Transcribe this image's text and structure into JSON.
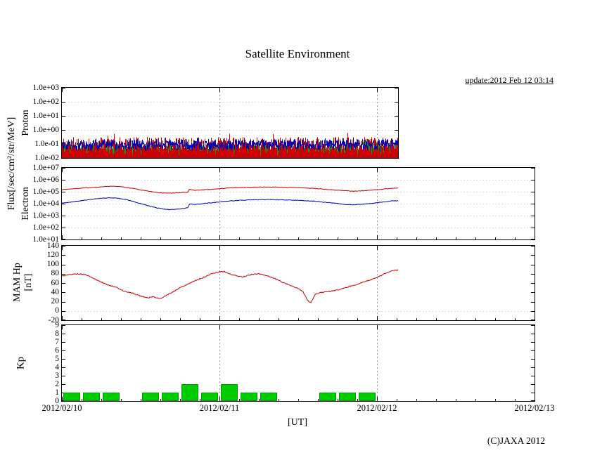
{
  "page": {
    "title": "Satellite Environment",
    "update_text": "update:2012 Feb 12 03:14",
    "x_axis_label": "[UT]",
    "copyright": "(C)JAXA 2012"
  },
  "axes": {
    "flux_label": "Flux[/sec/cm²/str/MeV]",
    "x_tick_labels": [
      "2012/02/10",
      "2012/02/11",
      "2012/02/12",
      "2012/02/13"
    ],
    "x_tick_days": [
      0,
      1,
      2,
      3
    ]
  },
  "colors": {
    "proton_ch1": "#cc0000",
    "proton_ch2": "#0000bb",
    "proton_ch3": "#00aa00",
    "electron_high": "#cc0000",
    "electron_low": "#0000bb",
    "hp_line": "#cc0000",
    "kp_bar": "#00cc00",
    "grid": "#999999",
    "frame": "#000000"
  },
  "chart_data": [
    {
      "id": "proton",
      "type": "line",
      "ylabel": "Proton",
      "yscale": "log",
      "ylim": [
        0.01,
        1000
      ],
      "ytick_values": [
        1000,
        100,
        10,
        1,
        0.1,
        0.01
      ],
      "ytick_labels": [
        "1.0e+03",
        "1.0e+02",
        "1.0e+01",
        "1.0e+00",
        "1.0e-01",
        "1.0e-02"
      ],
      "grid_y_values": [
        100,
        10,
        1,
        0.1
      ],
      "x_box_end_day": 2.135,
      "data_end_day": 2.135,
      "series": [
        {
          "name": "proton-flux-ch1",
          "style": "noise-fill",
          "color": "#cc0000",
          "top_log_mean": -0.95,
          "top_log_jitter": 0.45,
          "seed": 11
        },
        {
          "name": "proton-flux-ch3",
          "style": "noise-sparse",
          "color": "#00aa00",
          "center_log": -1.3,
          "band_log": 0.25,
          "density": 0.3,
          "seed": 33
        },
        {
          "name": "proton-flux-ch2",
          "style": "noise-band",
          "color": "#0000bb",
          "center_log": -1.05,
          "band_log": 0.22,
          "seed": 22
        }
      ]
    },
    {
      "id": "electron",
      "type": "line",
      "ylabel": "Electron",
      "yscale": "log",
      "ylim": [
        10,
        10000000
      ],
      "ytick_values": [
        10000000,
        1000000,
        100000,
        10000,
        1000,
        100,
        10
      ],
      "ytick_labels": [
        "1.0e+07",
        "1.0e+06",
        "1.0e+05",
        "1.0e+04",
        "1.0e+03",
        "1.0e+02",
        "1.0e+01"
      ],
      "grid_y_values": [
        1000000,
        100000,
        10000,
        1000,
        100
      ],
      "x_box_end_day": 3,
      "data_end_day": 2.135,
      "series": [
        {
          "name": "electron-flux-high",
          "style": "line",
          "color": "#cc0000",
          "jitter": 0.045,
          "seed": 7,
          "points": [
            [
              0,
              150000
            ],
            [
              0.05,
              170000
            ],
            [
              0.1,
              190000
            ],
            [
              0.15,
              210000
            ],
            [
              0.2,
              230000
            ],
            [
              0.25,
              260000
            ],
            [
              0.3,
              280000
            ],
            [
              0.35,
              280000
            ],
            [
              0.4,
              240000
            ],
            [
              0.45,
              190000
            ],
            [
              0.5,
              140000
            ],
            [
              0.55,
              110000
            ],
            [
              0.6,
              90000
            ],
            [
              0.64,
              80000
            ],
            [
              0.68,
              75000
            ],
            [
              0.72,
              80000
            ],
            [
              0.76,
              85000
            ],
            [
              0.8,
              90000
            ],
            [
              0.81,
              160000
            ],
            [
              0.84,
              130000
            ],
            [
              0.88,
              140000
            ],
            [
              0.92,
              150000
            ],
            [
              0.96,
              160000
            ],
            [
              1.0,
              180000
            ],
            [
              1.05,
              200000
            ],
            [
              1.1,
              220000
            ],
            [
              1.2,
              240000
            ],
            [
              1.3,
              250000
            ],
            [
              1.4,
              240000
            ],
            [
              1.5,
              220000
            ],
            [
              1.6,
              190000
            ],
            [
              1.7,
              150000
            ],
            [
              1.8,
              120000
            ],
            [
              1.85,
              110000
            ],
            [
              1.9,
              120000
            ],
            [
              1.95,
              130000
            ],
            [
              2.0,
              150000
            ],
            [
              2.05,
              170000
            ],
            [
              2.1,
              200000
            ],
            [
              2.135,
              210000
            ]
          ]
        },
        {
          "name": "electron-flux-low",
          "style": "line",
          "color": "#0000bb",
          "jitter": 0.05,
          "seed": 9,
          "points": [
            [
              0,
              11000
            ],
            [
              0.05,
              13000
            ],
            [
              0.1,
              16000
            ],
            [
              0.15,
              20000
            ],
            [
              0.2,
              24000
            ],
            [
              0.25,
              28000
            ],
            [
              0.3,
              30000
            ],
            [
              0.35,
              29000
            ],
            [
              0.4,
              23000
            ],
            [
              0.45,
              16000
            ],
            [
              0.5,
              10000
            ],
            [
              0.55,
              6500
            ],
            [
              0.6,
              4500
            ],
            [
              0.64,
              3600
            ],
            [
              0.68,
              3200
            ],
            [
              0.72,
              3400
            ],
            [
              0.76,
              3800
            ],
            [
              0.8,
              4500
            ],
            [
              0.81,
              10000
            ],
            [
              0.84,
              8500
            ],
            [
              0.88,
              9500
            ],
            [
              0.92,
              11000
            ],
            [
              0.96,
              12000
            ],
            [
              1.0,
              14000
            ],
            [
              1.05,
              16000
            ],
            [
              1.1,
              18000
            ],
            [
              1.2,
              21000
            ],
            [
              1.3,
              22000
            ],
            [
              1.4,
              21000
            ],
            [
              1.5,
              19000
            ],
            [
              1.6,
              16000
            ],
            [
              1.7,
              12000
            ],
            [
              1.8,
              8500
            ],
            [
              1.85,
              8000
            ],
            [
              1.9,
              9000
            ],
            [
              1.95,
              10000
            ],
            [
              2.0,
              12000
            ],
            [
              2.05,
              14000
            ],
            [
              2.1,
              17000
            ],
            [
              2.135,
              18000
            ]
          ]
        }
      ]
    },
    {
      "id": "hp",
      "type": "line",
      "ylabel": "MAM Hp",
      "ylabel2": "[nT]",
      "yscale": "linear",
      "ylim": [
        -20,
        140
      ],
      "ytick_values": [
        140,
        120,
        100,
        80,
        60,
        40,
        20,
        0,
        -20
      ],
      "ytick_labels": [
        "140",
        "120",
        "100",
        "80",
        "60",
        "40",
        "20",
        "0",
        "-20"
      ],
      "grid_y_values": [
        0
      ],
      "x_box_end_day": 3,
      "data_end_day": 2.135,
      "series": [
        {
          "name": "hp-line",
          "style": "line",
          "color": "#cc0000",
          "jitter": 2.0,
          "seed": 5,
          "points": [
            [
              0,
              75
            ],
            [
              0.05,
              78
            ],
            [
              0.1,
              80
            ],
            [
              0.15,
              78
            ],
            [
              0.2,
              70
            ],
            [
              0.25,
              62
            ],
            [
              0.3,
              55
            ],
            [
              0.35,
              50
            ],
            [
              0.4,
              42
            ],
            [
              0.45,
              38
            ],
            [
              0.5,
              32
            ],
            [
              0.55,
              28
            ],
            [
              0.58,
              31
            ],
            [
              0.62,
              26
            ],
            [
              0.66,
              33
            ],
            [
              0.7,
              40
            ],
            [
              0.75,
              50
            ],
            [
              0.8,
              58
            ],
            [
              0.85,
              66
            ],
            [
              0.9,
              72
            ],
            [
              0.95,
              80
            ],
            [
              1.0,
              84
            ],
            [
              1.03,
              85
            ],
            [
              1.06,
              80
            ],
            [
              1.1,
              76
            ],
            [
              1.15,
              73
            ],
            [
              1.2,
              78
            ],
            [
              1.25,
              80
            ],
            [
              1.3,
              76
            ],
            [
              1.35,
              70
            ],
            [
              1.4,
              62
            ],
            [
              1.45,
              55
            ],
            [
              1.5,
              48
            ],
            [
              1.53,
              42
            ],
            [
              1.56,
              22
            ],
            [
              1.58,
              18
            ],
            [
              1.61,
              36
            ],
            [
              1.65,
              40
            ],
            [
              1.7,
              42
            ],
            [
              1.75,
              45
            ],
            [
              1.8,
              50
            ],
            [
              1.85,
              55
            ],
            [
              1.9,
              60
            ],
            [
              1.95,
              66
            ],
            [
              2.0,
              72
            ],
            [
              2.05,
              80
            ],
            [
              2.1,
              87
            ],
            [
              2.135,
              88
            ]
          ]
        }
      ]
    },
    {
      "id": "kp",
      "type": "bar",
      "ylabel": "Kp",
      "yscale": "linear",
      "ylim": [
        0,
        9
      ],
      "ytick_values": [
        9,
        8,
        7,
        6,
        5,
        4,
        3,
        2,
        1,
        0
      ],
      "ytick_labels": [
        "9",
        "8",
        "7",
        "6",
        "5",
        "4",
        "3",
        "2",
        "1",
        "0"
      ],
      "grid_y_values": [],
      "x_box_end_day": 3,
      "data_end_day": 2.135,
      "bar_interval_hours": 3,
      "bar_color": "#00cc00",
      "bar_edge": "#009900",
      "values": [
        1,
        1,
        1,
        0,
        1,
        1,
        2,
        1,
        2,
        1,
        1,
        0,
        0,
        1,
        1,
        1
      ]
    }
  ]
}
